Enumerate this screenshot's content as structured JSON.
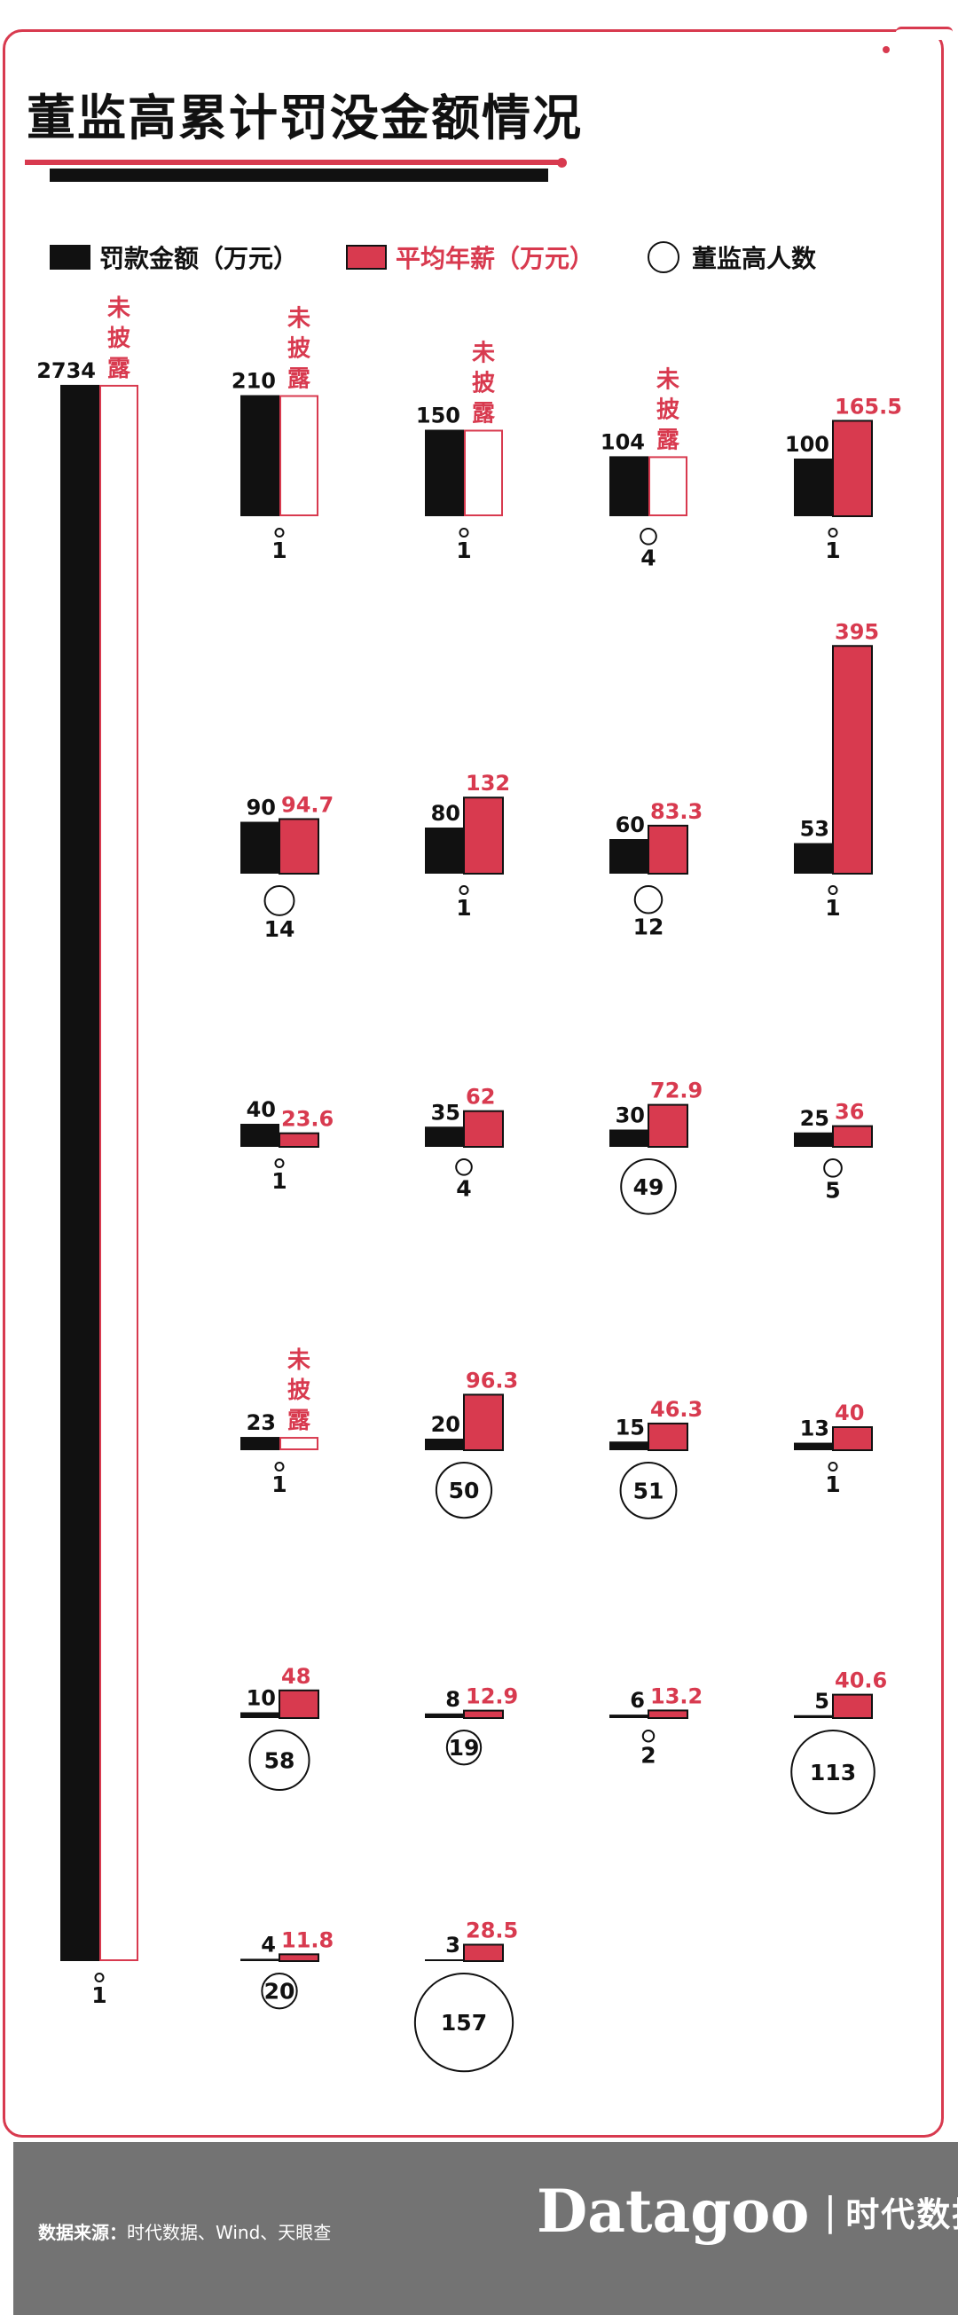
{
  "title": "董监高累计罚没金额情况",
  "legend": {
    "fine": "罚款金额（万元）",
    "salary": "平均年薪（万元）",
    "people": "董监高人数"
  },
  "colors": {
    "fine": "#111111",
    "salary": "#d83a4f",
    "undisclosed_text": "#d83a4f"
  },
  "footer": {
    "source_label": "数据来源：",
    "source_text": "时代数据、Wind、天眼查",
    "brand_name": "Datagoo",
    "brand_sep": "|",
    "brand_cn": "时代数据"
  },
  "chart_data": {
    "type": "bar",
    "subtype": "paired-bar-grid",
    "undisclosed_label": "未披露",
    "series": [
      {
        "name": "罚款金额（万元）",
        "key": "fine"
      },
      {
        "name": "平均年薪（万元）",
        "key": "salary"
      },
      {
        "name": "董监高人数",
        "key": "people"
      }
    ],
    "items": [
      {
        "fine": 2734,
        "salary": null,
        "people": 1
      },
      {
        "fine": 210,
        "salary": null,
        "people": 1
      },
      {
        "fine": 150,
        "salary": null,
        "people": 1
      },
      {
        "fine": 104,
        "salary": null,
        "people": 4
      },
      {
        "fine": 100,
        "salary": 165.5,
        "people": 1
      },
      {
        "fine": 90,
        "salary": 94.7,
        "people": 14
      },
      {
        "fine": 80,
        "salary": 132,
        "people": 1
      },
      {
        "fine": 60,
        "salary": 83.3,
        "people": 12
      },
      {
        "fine": 53,
        "salary": 395,
        "people": 1
      },
      {
        "fine": 40,
        "salary": 23.6,
        "people": 1
      },
      {
        "fine": 35,
        "salary": 62,
        "people": 4
      },
      {
        "fine": 30,
        "salary": 72.9,
        "people": 49
      },
      {
        "fine": 25,
        "salary": 36,
        "people": 5
      },
      {
        "fine": 23,
        "salary": null,
        "people": 1
      },
      {
        "fine": 20,
        "salary": 96.3,
        "people": 50
      },
      {
        "fine": 15,
        "salary": 46.3,
        "people": 51
      },
      {
        "fine": 13,
        "salary": 40,
        "people": 1
      },
      {
        "fine": 10,
        "salary": 48,
        "people": 58
      },
      {
        "fine": 8,
        "salary": 12.9,
        "people": 19
      },
      {
        "fine": 6,
        "salary": 13.2,
        "people": 2
      },
      {
        "fine": 5,
        "salary": 40.6,
        "people": 113
      },
      {
        "fine": 4,
        "salary": 11.8,
        "people": 20
      },
      {
        "fine": 3,
        "salary": 28.5,
        "people": 157
      }
    ]
  }
}
